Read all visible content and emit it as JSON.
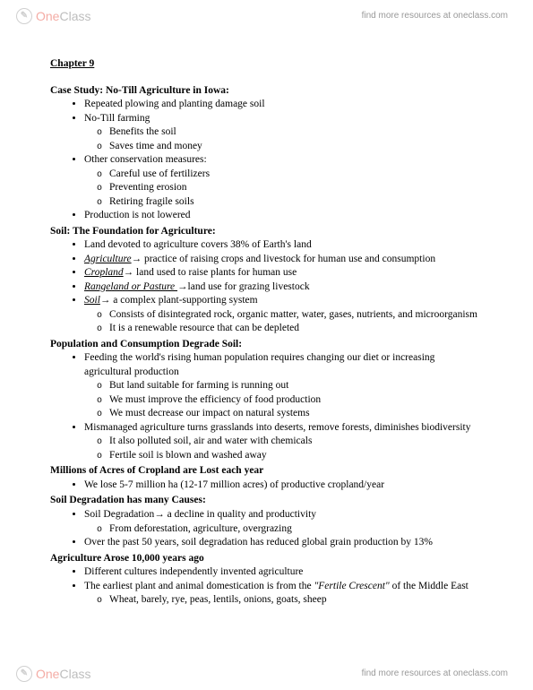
{
  "brand": {
    "name_a": "One",
    "name_b": "Class",
    "tagline": "find more resources at oneclass.com"
  },
  "chapter": "Chapter 9",
  "s1": {
    "title": "Case Study: No-Till Agriculture in Iowa:",
    "b1": "Repeated plowing and planting damage soil",
    "b2": "No-Till farming",
    "b2a": "Benefits the soil",
    "b2b": "Saves time and money",
    "b3": "Other conservation measures:",
    "b3a": "Careful use of fertilizers",
    "b3b": "Preventing erosion",
    "b3c": "Retiring fragile soils",
    "b4": "Production is not lowered"
  },
  "s2": {
    "title": "Soil: The Foundation for Agriculture:",
    "b1": "Land devoted to agriculture covers 38% of Earth's land",
    "b2_term": "Agriculture",
    "b2_rest": " practice of raising crops and livestock for human use and consumption",
    "b3_term": "Cropland",
    "b3_rest": " land used to raise plants for human use",
    "b4_term": "Rangeland or Pasture ",
    "b4_rest": "land use for grazing livestock",
    "b5_term": "Soil",
    "b5_rest": " a complex plant-supporting system",
    "b5a": "Consists of disintegrated rock, organic matter, water, gases, nutrients, and microorganism",
    "b5b": "It is a renewable resource that can be depleted"
  },
  "s3": {
    "title": "Population and Consumption Degrade Soil:",
    "b1": "Feeding the world's rising human population requires changing our diet or increasing agricultural production",
    "b1a": "But land suitable for farming is running out",
    "b1b": "We must improve the efficiency of food production",
    "b1c": "We must decrease our impact on natural systems",
    "b2": "Mismanaged agriculture turns grasslands into deserts, remove forests, diminishes biodiversity",
    "b2a": "It also polluted soil, air and water with chemicals",
    "b2b": "Fertile soil is blown and washed away"
  },
  "s4": {
    "title": "Millions of Acres of Cropland are Lost each year",
    "b1": "We lose 5-7 million ha (12-17 million acres) of productive cropland/year"
  },
  "s5": {
    "title": "Soil Degradation has many Causes:",
    "b1a": "Soil Degradation",
    "b1b": " a decline in quality and productivity",
    "b1sa": "From deforestation, agriculture, overgrazing",
    "b2": "Over the past 50 years, soil degradation has reduced global grain production by 13%"
  },
  "s6": {
    "title": "Agriculture Arose 10,000 years ago",
    "b1": "Different cultures independently invented agriculture",
    "b2a": "The earliest plant and animal domestication is from the ",
    "b2b": "\"Fertile Crescent\"",
    "b2c": " of the Middle East",
    "b2sa": "Wheat, barely, rye, peas, lentils, onions, goats, sheep"
  },
  "arrow": "→"
}
